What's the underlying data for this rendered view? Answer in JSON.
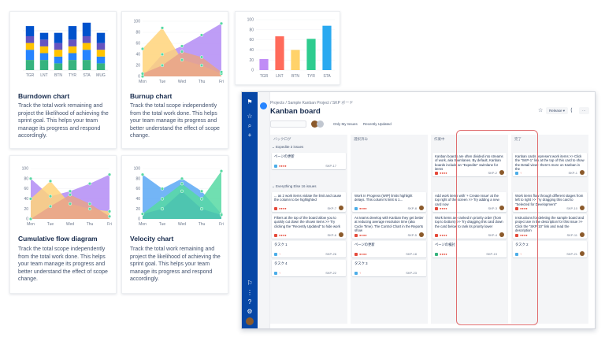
{
  "cards": [
    {
      "title": "Burndown chart",
      "desc": "Track the total work remaining and project the likelihood of achieving the sprint goal. This helps your team manage its progress and respond accordingly."
    },
    {
      "title": "Burnup chart",
      "desc": "Track the total scope independently from the total work done. This helps your team manage its progress and better understand the effect of scope change."
    },
    {
      "title": "Cumulative flow diagram",
      "desc": "Track the total scope independently from the total work done. This helps your team manage its progress and better understand the effect of scope change."
    },
    {
      "title": "Velocity chart",
      "desc": "Track the total work remaining and project the likelihood of achieving the sprint goal. This helps your team manage its progress and respond accordingly."
    }
  ],
  "chart_data": [
    {
      "type": "bar",
      "categories": [
        "TGR",
        "LNT",
        "BTN",
        "TYR",
        "STA",
        "MUG"
      ],
      "series": [
        {
          "values": [
            3,
            3,
            2,
            3,
            3,
            2
          ],
          "color": "#36b37e"
        },
        {
          "values": [
            3,
            2,
            2,
            2,
            3,
            2
          ],
          "color": "#2684ff"
        },
        {
          "values": [
            2,
            2,
            2,
            2,
            2,
            2
          ],
          "color": "#ffc400"
        },
        {
          "values": [
            2,
            2,
            2,
            2,
            2,
            2
          ],
          "color": "#6554c0"
        },
        {
          "values": [
            3,
            2,
            3,
            4,
            4,
            3
          ],
          "color": "#0052cc"
        }
      ]
    },
    {
      "type": "area",
      "categories": [
        "Mon",
        "Tue",
        "Wed",
        "Thu",
        "Fri"
      ],
      "ylim": [
        0,
        100
      ],
      "yticks": [
        0,
        20,
        40,
        60,
        80,
        100
      ],
      "series": [
        {
          "values": [
            0,
            40,
            55,
            75,
            96
          ],
          "color": "#b38cf5"
        },
        {
          "values": [
            50,
            88,
            30,
            20,
            5
          ],
          "color": "#ffd37a"
        },
        {
          "values": [
            5,
            20,
            45,
            35,
            8
          ],
          "color": "#e8a389"
        }
      ]
    },
    {
      "type": "bar",
      "categories": [
        "TGR",
        "LNT",
        "BTN",
        "TYR",
        "STA"
      ],
      "ylim": [
        0,
        100
      ],
      "yticks": [
        0,
        20,
        40,
        60,
        80,
        100
      ],
      "values": [
        22,
        67,
        40,
        62,
        88
      ],
      "colors": [
        "#c08cf6",
        "#ff6b5b",
        "#ffd26a",
        "#2ecc8f",
        "#2aa9f0"
      ]
    },
    {
      "type": "area",
      "categories": [
        "Mon",
        "Tue",
        "Wed",
        "Thu",
        "Fri"
      ],
      "ylim": [
        0,
        100
      ],
      "yticks": [
        0,
        20,
        40,
        60,
        80,
        100
      ],
      "series": [
        {
          "values": [
            80,
            45,
            55,
            70,
            88
          ],
          "color": "#b38cf5"
        },
        {
          "values": [
            40,
            75,
            30,
            20,
            15
          ],
          "color": "#ffd37a"
        },
        {
          "values": [
            0,
            25,
            48,
            30,
            5
          ],
          "color": "#e8a389"
        }
      ]
    },
    {
      "type": "area",
      "categories": [
        "Mon",
        "Tue",
        "Wed",
        "Thu",
        "Fri"
      ],
      "ylim": [
        0,
        100
      ],
      "yticks": [
        0,
        20,
        40,
        60,
        80,
        100
      ],
      "series": [
        {
          "values": [
            88,
            60,
            80,
            55,
            10
          ],
          "color": "#5aa8f5"
        },
        {
          "values": [
            10,
            40,
            70,
            40,
            95
          ],
          "color": "#57d9a3"
        },
        {
          "values": [
            10,
            20,
            55,
            20,
            8
          ],
          "color": "#4cc2b0"
        }
      ]
    }
  ],
  "board": {
    "breadcrumb": "Projects / Sample Kanban Project / SKP ボード",
    "title": "Kanban board",
    "release": "Release ▾",
    "quick_filters": [
      "Only My Issues",
      "Recently Updated"
    ],
    "columns": [
      "バックログ",
      "選択済み",
      "作業中",
      "完了"
    ],
    "swimlane_expedite": "⌄ Expedite  2 issues",
    "swimlane_everything": "⌄ Everything Else  16 issues",
    "cards": {
      "c1": {
        "text": "ページの更新",
        "key": "SKP-17"
      },
      "c2": {
        "text": "... as 2 work items violate the limit and cause the column to be highlighted",
        "key": "SKP-7"
      },
      "c3": {
        "text": "Filters at the top of the board allow you to quickly cut down the shown items >> Try clicking the \"Recently Updated\" to hide work",
        "key": "SKP-6"
      },
      "c4": {
        "text": "タスク 1",
        "key": "SKP-26"
      },
      "c5": {
        "text": "タスク 4",
        "key": "SKP-22"
      },
      "c6": {
        "text": "Work In Progress (WIP) limits highlight delays. This column's limit is 1...",
        "key": "SKP-8"
      },
      "c7": {
        "text": "As teams develop with Kanban they get better at reducing average resolution time (aka Cycle Time). The Control Chart in the Reports show",
        "key": "SKP-5"
      },
      "c8": {
        "text": "ページの更新",
        "key": "SKP-18"
      },
      "c9": {
        "text": "タスク 3",
        "key": "SKP-23"
      },
      "c10": {
        "text": "Kanban boards are often divided into streams of work, aka Swimlanes. By default, Kanban boards include an \"Expedite\" swimlane for items",
        "key": "SKP-2"
      },
      "c11": {
        "text": "Add work items with '+ Create Issue' at the top right of the screen >> Try adding a new card now",
        "key": "SKP-3"
      },
      "c12": {
        "text": "Work items are ranked in priority order (from top to bottom) >> Try dragging this card down the card below to rank its priority lower",
        "key": "SKP-4"
      },
      "c13": {
        "text": "ページの検討",
        "key": "SKP-19"
      },
      "c14": {
        "text": "Kanban cards represent work items >> Click the \"SKP-1\" link at the top of this card to show the Detail view - there's more on Kanban in the",
        "key": "SKP-1"
      },
      "c15": {
        "text": "Work items flow through different stages from left to right >> Try dragging this card to \"Selected for Development\"",
        "key": "SKP-10"
      },
      "c16": {
        "text": "Instructions for deleting the sample board and project are in the description for this issue >> Click the \"SKP-10\" link and read the description",
        "key": "SKP-11"
      },
      "c17": {
        "text": "タスク 2",
        "key": "SKP-21"
      }
    }
  }
}
